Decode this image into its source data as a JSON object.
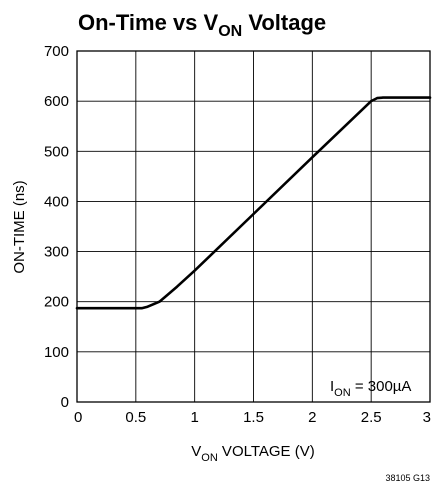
{
  "chart_data": {
    "type": "line",
    "title": {
      "main": "On-Time vs V",
      "sub": "ON",
      "tail": " Voltage"
    },
    "xlabel": {
      "main": "V",
      "sub": "ON",
      "tail": " VOLTAGE (V)"
    },
    "ylabel": "ON-TIME (ns)",
    "xlim": [
      0,
      3
    ],
    "ylim": [
      0,
      700
    ],
    "x_ticks": [
      0,
      0.5,
      1,
      1.5,
      2,
      2.5,
      3
    ],
    "x_tick_labels": [
      "0",
      "0.5",
      "1",
      "1.5",
      "2",
      "2.5",
      "3"
    ],
    "y_ticks": [
      0,
      100,
      200,
      300,
      400,
      500,
      600,
      700
    ],
    "y_tick_labels": [
      "0",
      "100",
      "200",
      "300",
      "400",
      "500",
      "600",
      "700"
    ],
    "grid": true,
    "series": [
      {
        "x": [
          0,
          0.55,
          0.6,
          0.65,
          0.7,
          0.75,
          0.85,
          1.0,
          1.5,
          2.0,
          2.5,
          2.55,
          2.6,
          3.0
        ],
        "y": [
          187,
          187,
          190,
          195,
          200,
          210,
          230,
          262,
          375,
          488,
          600,
          606,
          607,
          607
        ]
      }
    ],
    "annotation": {
      "main": "I",
      "sub": "ON",
      "tail": " = 300µA"
    },
    "figure_id": "38105 G13"
  }
}
